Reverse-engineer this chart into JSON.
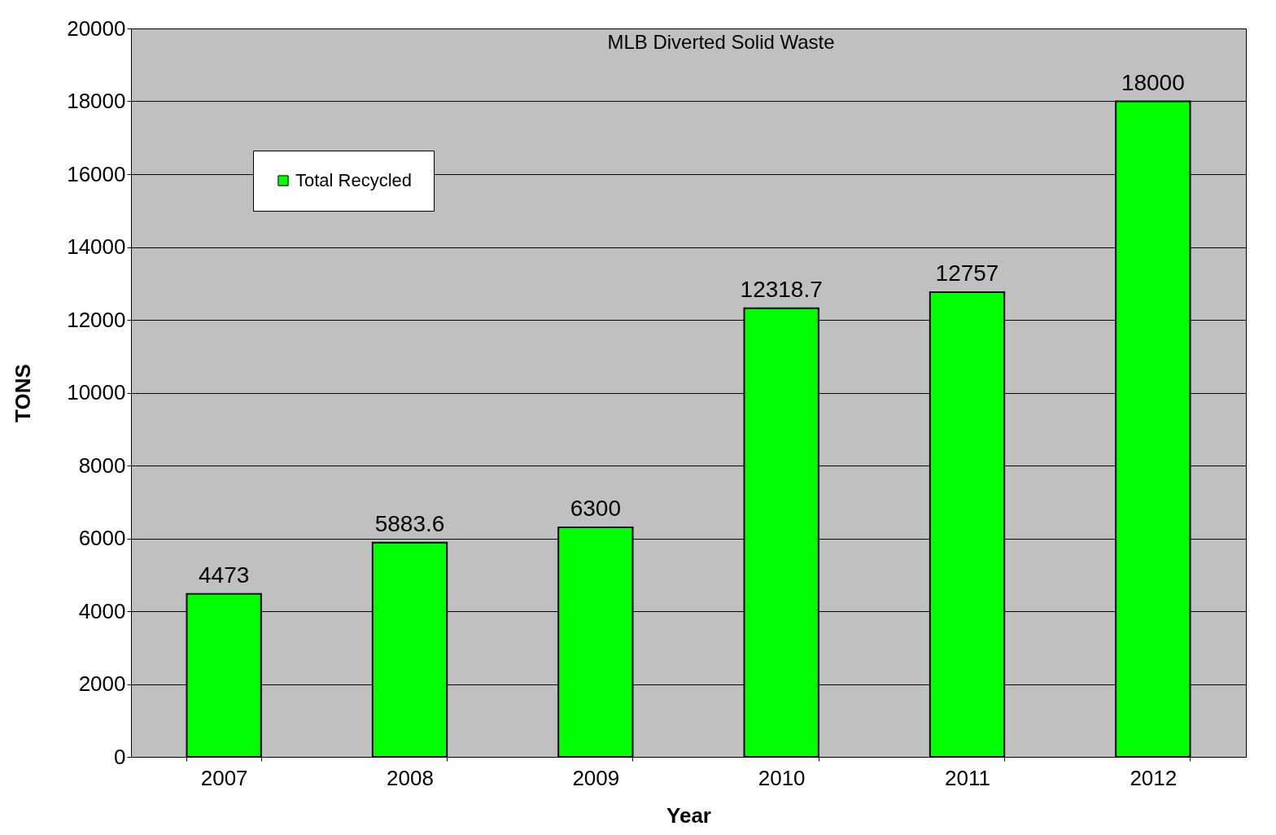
{
  "chart_data": {
    "type": "bar",
    "title": "MLB Diverted Solid Waste",
    "xlabel": "Year",
    "ylabel": "TONS",
    "categories": [
      "2007",
      "2008",
      "2009",
      "2010",
      "2011",
      "2012"
    ],
    "series": [
      {
        "name": "Total Recycled",
        "color": "#00ff00",
        "values": [
          4473,
          5883.6,
          6300,
          12318.7,
          12757,
          18000
        ]
      }
    ],
    "ylim": [
      0,
      20000
    ],
    "yticks": [
      0,
      2000,
      4000,
      6000,
      8000,
      10000,
      12000,
      14000,
      16000,
      18000,
      20000
    ],
    "grid": "y",
    "legend": "top left",
    "data_labels": true
  }
}
